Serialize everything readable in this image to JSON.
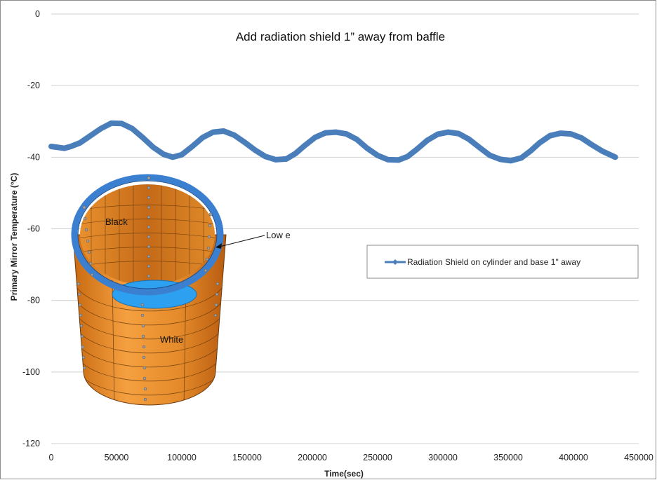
{
  "chart_data": {
    "type": "line",
    "title": "Add radiation shield 1” away from baffle",
    "xlabel": "Time(sec)",
    "ylabel": "Primary Mirror Temperature (°C)",
    "xlim": [
      0,
      450000
    ],
    "ylim": [
      -120,
      0
    ],
    "x_ticks": [
      0,
      50000,
      100000,
      150000,
      200000,
      250000,
      300000,
      350000,
      400000,
      450000
    ],
    "y_ticks": [
      0,
      -20,
      -40,
      -60,
      -80,
      -100,
      -120
    ],
    "grid": "horizontal",
    "legend_position": "right",
    "series": [
      {
        "name": "Radiation Shield on cylinder and base 1\" away",
        "color": "#4a7ebb",
        "x": [
          0,
          10000,
          15000,
          22000,
          30000,
          38000,
          46000,
          54000,
          62000,
          70000,
          78000,
          86000,
          93000,
          100000,
          108000,
          116000,
          124000,
          132000,
          140000,
          148000,
          156000,
          164000,
          172000,
          180000,
          187000,
          194000,
          202000,
          210000,
          218000,
          226000,
          234000,
          242000,
          250000,
          258000,
          266000,
          273000,
          280000,
          288000,
          296000,
          304000,
          312000,
          320000,
          328000,
          336000,
          344000,
          352000,
          360000,
          367000,
          374000,
          382000,
          390000,
          398000,
          406000,
          414000,
          422000,
          432000
        ],
        "y": [
          -37,
          -37.5,
          -37,
          -36,
          -34,
          -32,
          -30.5,
          -30.6,
          -32,
          -34.5,
          -37.2,
          -39.2,
          -40,
          -39.3,
          -37,
          -34.5,
          -33,
          -32.7,
          -33.8,
          -35.8,
          -38,
          -39.8,
          -40.7,
          -40.5,
          -39,
          -36.8,
          -34.5,
          -33.2,
          -33,
          -33.5,
          -35,
          -37.5,
          -39.5,
          -40.7,
          -40.8,
          -39.8,
          -37.8,
          -35.3,
          -33.6,
          -33,
          -33.4,
          -35,
          -37.3,
          -39.5,
          -40.6,
          -41,
          -40.2,
          -38.3,
          -36,
          -34,
          -33.3,
          -33.5,
          -34.6,
          -36.5,
          -38.3,
          -40
        ]
      }
    ],
    "annotations": [
      "Black",
      "Low e",
      "White"
    ]
  }
}
